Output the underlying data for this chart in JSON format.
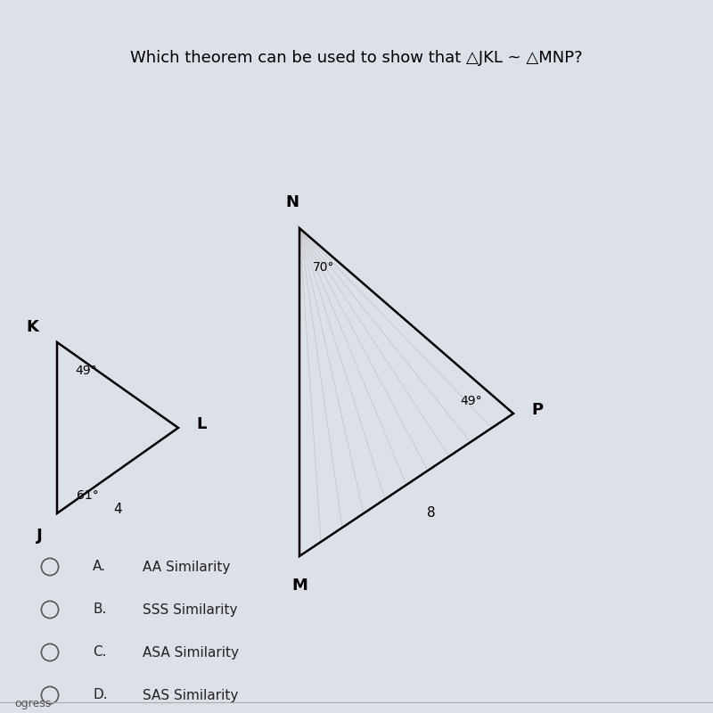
{
  "bg_color": "#dce0e8",
  "title": "Which theorem can be used to show that △JKL ~ △MNP?",
  "title_fontsize": 13,
  "triangle1": {
    "J": [
      0.08,
      0.28
    ],
    "K": [
      0.08,
      0.52
    ],
    "L": [
      0.25,
      0.4
    ],
    "angle_J": "61°",
    "angle_K": "49°",
    "side_JL": "4",
    "color": "#000000"
  },
  "triangle2": {
    "M": [
      0.42,
      0.22
    ],
    "N": [
      0.42,
      0.68
    ],
    "P": [
      0.72,
      0.42
    ],
    "angle_N": "70°",
    "angle_P": "49°",
    "side_MP": "8",
    "color": "#000000"
  },
  "options": [
    {
      "label": "A.",
      "text": "AA Similarity"
    },
    {
      "label": "B.",
      "text": "SSS Similarity"
    },
    {
      "label": "C.",
      "text": "ASA Similarity"
    },
    {
      "label": "D.",
      "text": "SAS Similarity"
    }
  ]
}
